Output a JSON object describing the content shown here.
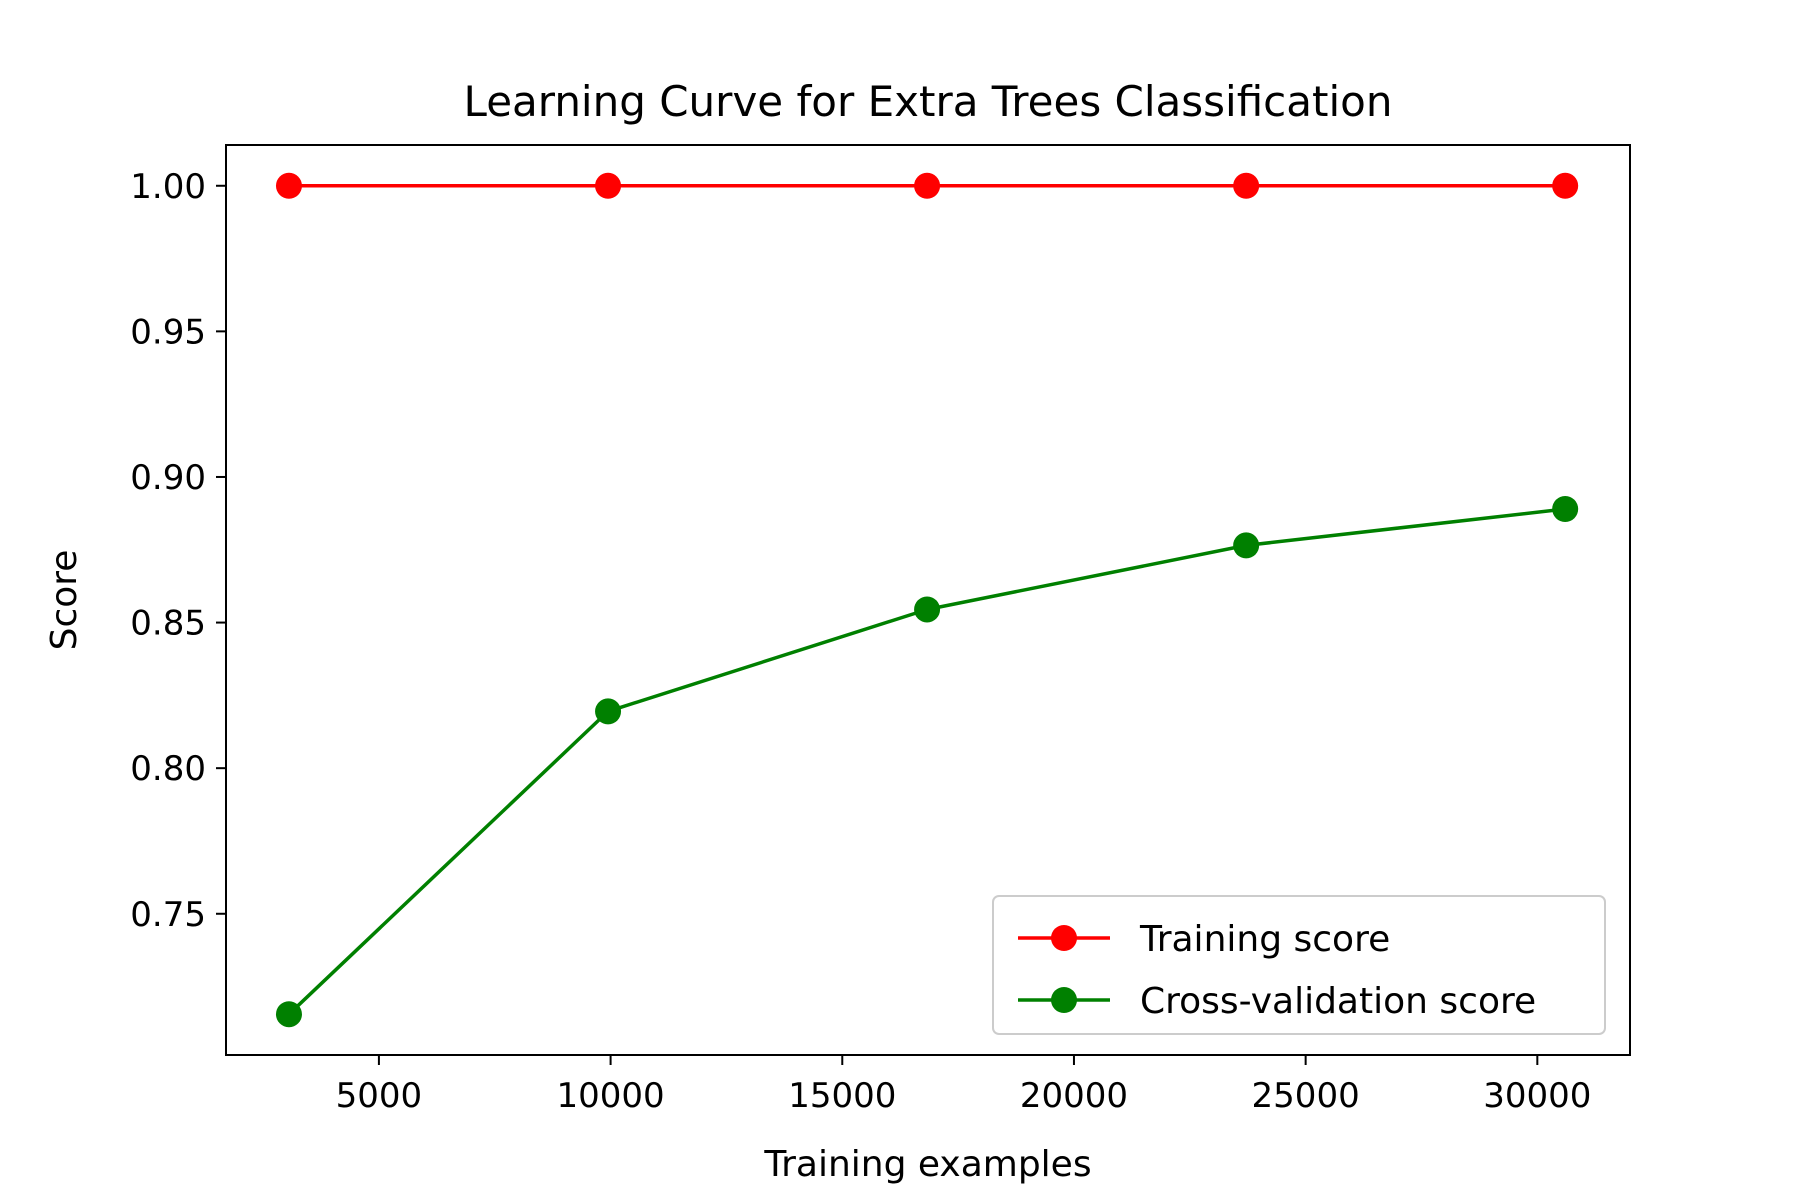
{
  "chart_data": {
    "type": "line",
    "title": "Learning Curve for Extra Trees Classification",
    "xlabel": "Training examples",
    "ylabel": "Score",
    "x": [
      3059,
      9945,
      16830,
      23716,
      30601
    ],
    "series": [
      {
        "name": "Training score",
        "color": "#ff0000",
        "marker": "circle",
        "values": [
          1.0,
          1.0,
          1.0,
          1.0,
          1.0
        ]
      },
      {
        "name": "Cross-validation score",
        "color": "#008000",
        "marker": "circle",
        "values": [
          0.7155,
          0.8195,
          0.8545,
          0.8765,
          0.889
        ]
      }
    ],
    "xlim": [
      1700,
      32000
    ],
    "ylim": [
      0.7015,
      1.014
    ],
    "xticks": [
      5000,
      10000,
      15000,
      20000,
      25000,
      30000
    ],
    "xtick_labels": [
      "5000",
      "10000",
      "15000",
      "20000",
      "25000",
      "30000"
    ],
    "yticks": [
      0.75,
      0.8,
      0.85,
      0.9,
      0.95,
      1.0
    ],
    "ytick_labels": [
      "0.75",
      "0.80",
      "0.85",
      "0.90",
      "0.95",
      "1.00"
    ],
    "grid": false,
    "legend": "lower right"
  }
}
